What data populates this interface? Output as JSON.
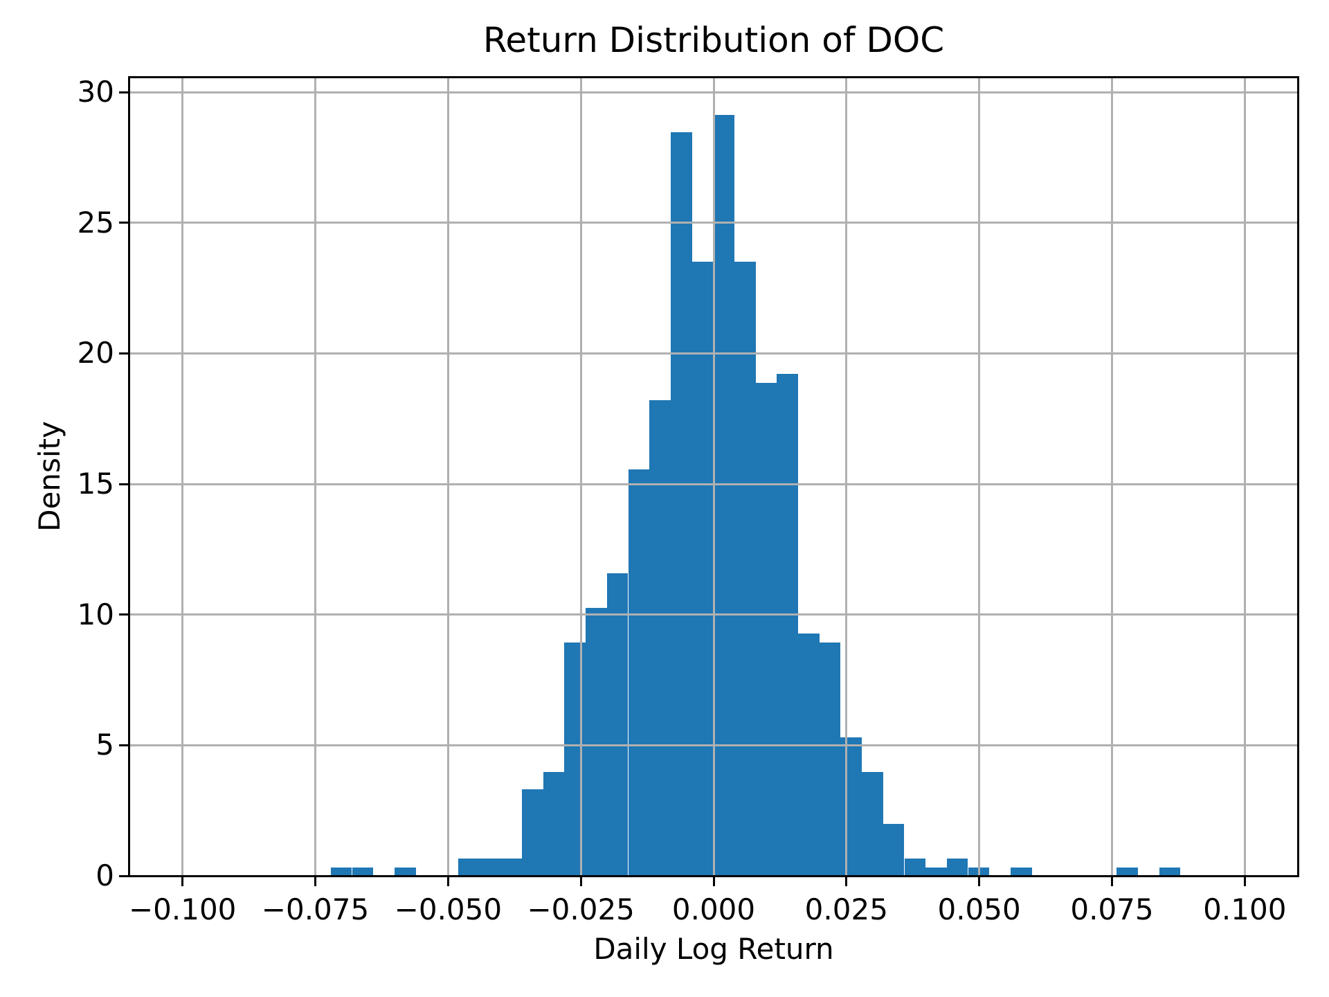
{
  "chart_data": {
    "type": "bar",
    "subtype": "histogram",
    "title": "Return Distribution of DOC",
    "xlabel": "Daily Log Return",
    "ylabel": "Density",
    "xlim": [
      -0.11,
      0.11
    ],
    "ylim": [
      0,
      30.56
    ],
    "grid": true,
    "legend": false,
    "bar_color": "#1f77b4",
    "grid_color": "#b0b0b0",
    "spine_color": "#000000",
    "background_color": "#ffffff",
    "bins": {
      "start": -0.0721,
      "width": 0.004,
      "count": 40
    },
    "densities": [
      0.33,
      0.33,
      0,
      0.33,
      0,
      0,
      0.66,
      0.66,
      0.66,
      3.31,
      3.97,
      8.94,
      10.27,
      11.59,
      15.56,
      18.21,
      28.48,
      23.51,
      29.14,
      23.51,
      18.87,
      19.21,
      9.27,
      8.94,
      5.3,
      3.97,
      1.99,
      0.66,
      0.33,
      0.66,
      0.33,
      0,
      0.33,
      0,
      0,
      0,
      0,
      0.33,
      0,
      0.33
    ],
    "x_tick_values": [
      -0.1,
      -0.075,
      -0.05,
      -0.025,
      0.0,
      0.025,
      0.05,
      0.075,
      0.1
    ],
    "x_tick_labels": [
      "−0.100",
      "−0.075",
      "−0.050",
      "−0.025",
      "0.000",
      "0.025",
      "0.050",
      "0.075",
      "0.100"
    ],
    "y_tick_values": [
      0,
      5,
      10,
      15,
      20,
      25,
      30
    ],
    "y_tick_labels": [
      "0",
      "5",
      "10",
      "15",
      "20",
      "25",
      "30"
    ]
  }
}
